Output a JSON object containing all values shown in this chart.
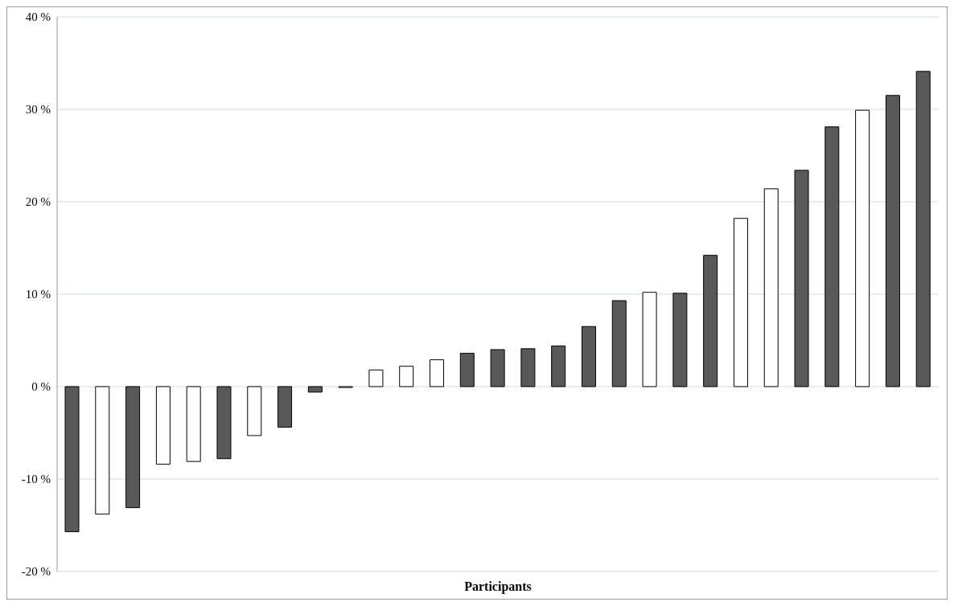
{
  "chart_data": {
    "type": "bar",
    "xlabel": "Participants",
    "categories": [
      null,
      null,
      null,
      null,
      null,
      null,
      null,
      null,
      null,
      null,
      null,
      null,
      null,
      null,
      null,
      null,
      null,
      null,
      null,
      null,
      null,
      null,
      null,
      null,
      null,
      null,
      null,
      null,
      null
    ],
    "values": [
      -15.7,
      -13.8,
      -13.1,
      -8.4,
      -8.1,
      -7.8,
      -5.3,
      -4.4,
      -0.6,
      -0.1,
      1.8,
      2.2,
      2.9,
      3.6,
      4.0,
      4.1,
      4.4,
      6.5,
      9.3,
      10.2,
      10.1,
      14.2,
      18.2,
      21.4,
      23.4,
      28.1,
      29.9,
      31.5,
      34.1
    ],
    "colors": [
      "#595959",
      "#ffffff",
      "#595959",
      "#ffffff",
      "#ffffff",
      "#595959",
      "#ffffff",
      "#595959",
      "#595959",
      "#ffffff",
      "#ffffff",
      "#ffffff",
      "#ffffff",
      "#595959",
      "#595959",
      "#595959",
      "#595959",
      "#595959",
      "#595959",
      "#ffffff",
      "#595959",
      "#595959",
      "#ffffff",
      "#ffffff",
      "#595959",
      "#595959",
      "#ffffff",
      "#595959",
      "#595959"
    ],
    "ylim": [
      -20,
      40
    ],
    "yticks": [
      {
        "value": -20,
        "label": "-20 %"
      },
      {
        "value": -10,
        "label": "-10 %"
      },
      {
        "value": 0,
        "label": "0 %"
      },
      {
        "value": 10,
        "label": "10 %"
      },
      {
        "value": 20,
        "label": "20 %"
      },
      {
        "value": 30,
        "label": "30 %"
      },
      {
        "value": 40,
        "label": "40 %"
      }
    ],
    "grid": "y",
    "tick_labels": "y"
  }
}
